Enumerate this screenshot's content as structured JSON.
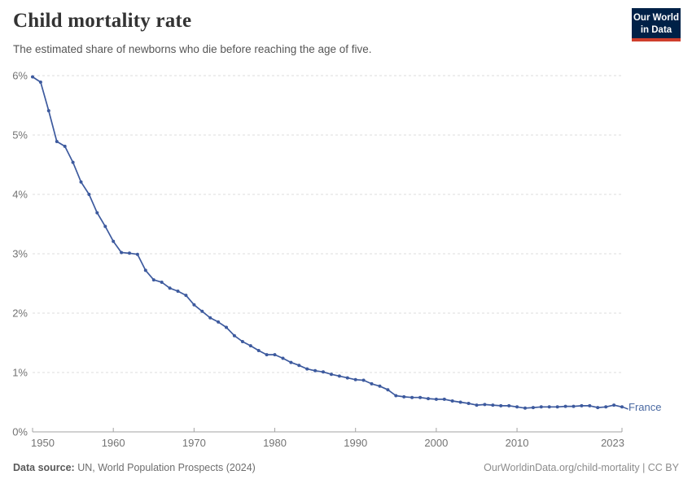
{
  "header": {
    "title": "Child mortality rate",
    "subtitle": "The estimated share of newborns who die before reaching the age of five."
  },
  "logo": {
    "line1": "Our World",
    "line2": "in Data",
    "bg_color": "#002147",
    "accent_color": "#cf3e2c"
  },
  "chart_data": {
    "type": "line",
    "title": "Child mortality rate",
    "unit": "%",
    "xlim": [
      1950,
      2023
    ],
    "ylim": [
      0,
      6
    ],
    "grid": "horizontal-dashed",
    "legend_position": "end-of-line-label",
    "x_ticks": [
      1950,
      1960,
      1970,
      1980,
      1990,
      2000,
      2010,
      2023
    ],
    "x_tick_labels": [
      "1950",
      "1960",
      "1970",
      "1980",
      "1990",
      "2000",
      "2010",
      "2023"
    ],
    "y_ticks": [
      0,
      1,
      2,
      3,
      4,
      5,
      6
    ],
    "y_tick_labels": [
      "0%",
      "1%",
      "2%",
      "3%",
      "4%",
      "5%",
      "6%"
    ],
    "grid_color": "#dcdcdc",
    "axis_color": "#a3a3a3",
    "tick_label_color": "#737373",
    "series": [
      {
        "name": "France",
        "color": "#3d5a9e",
        "label_color": "#4a69a2",
        "years": [
          1950,
          1951,
          1952,
          1953,
          1954,
          1955,
          1956,
          1957,
          1958,
          1959,
          1960,
          1961,
          1962,
          1963,
          1964,
          1965,
          1966,
          1967,
          1968,
          1969,
          1970,
          1971,
          1972,
          1973,
          1974,
          1975,
          1976,
          1977,
          1978,
          1979,
          1980,
          1981,
          1982,
          1983,
          1984,
          1985,
          1986,
          1987,
          1988,
          1989,
          1990,
          1991,
          1992,
          1993,
          1994,
          1995,
          1996,
          1997,
          1998,
          1999,
          2000,
          2001,
          2002,
          2003,
          2004,
          2005,
          2006,
          2007,
          2008,
          2009,
          2010,
          2011,
          2012,
          2013,
          2014,
          2015,
          2016,
          2017,
          2018,
          2019,
          2020,
          2021,
          2022,
          2023
        ],
        "values": [
          5.98,
          5.89,
          5.41,
          4.89,
          4.81,
          4.54,
          4.21,
          4.0,
          3.69,
          3.46,
          3.21,
          3.02,
          3.01,
          2.99,
          2.72,
          2.56,
          2.52,
          2.42,
          2.37,
          2.3,
          2.14,
          2.03,
          1.92,
          1.85,
          1.76,
          1.62,
          1.52,
          1.45,
          1.37,
          1.3,
          1.3,
          1.24,
          1.17,
          1.12,
          1.06,
          1.03,
          1.01,
          0.97,
          0.94,
          0.91,
          0.88,
          0.87,
          0.81,
          0.77,
          0.71,
          0.61,
          0.59,
          0.58,
          0.58,
          0.56,
          0.55,
          0.55,
          0.52,
          0.5,
          0.48,
          0.45,
          0.46,
          0.45,
          0.44,
          0.44,
          0.42,
          0.4,
          0.41,
          0.42,
          0.42,
          0.42,
          0.43,
          0.43,
          0.44,
          0.44,
          0.41,
          0.42,
          0.45,
          0.42
        ]
      }
    ]
  },
  "footer": {
    "source_label": "Data source:",
    "source_text": "UN, World Population Prospects (2024)",
    "credit_text": "OurWorldinData.org/child-mortality | CC BY"
  }
}
